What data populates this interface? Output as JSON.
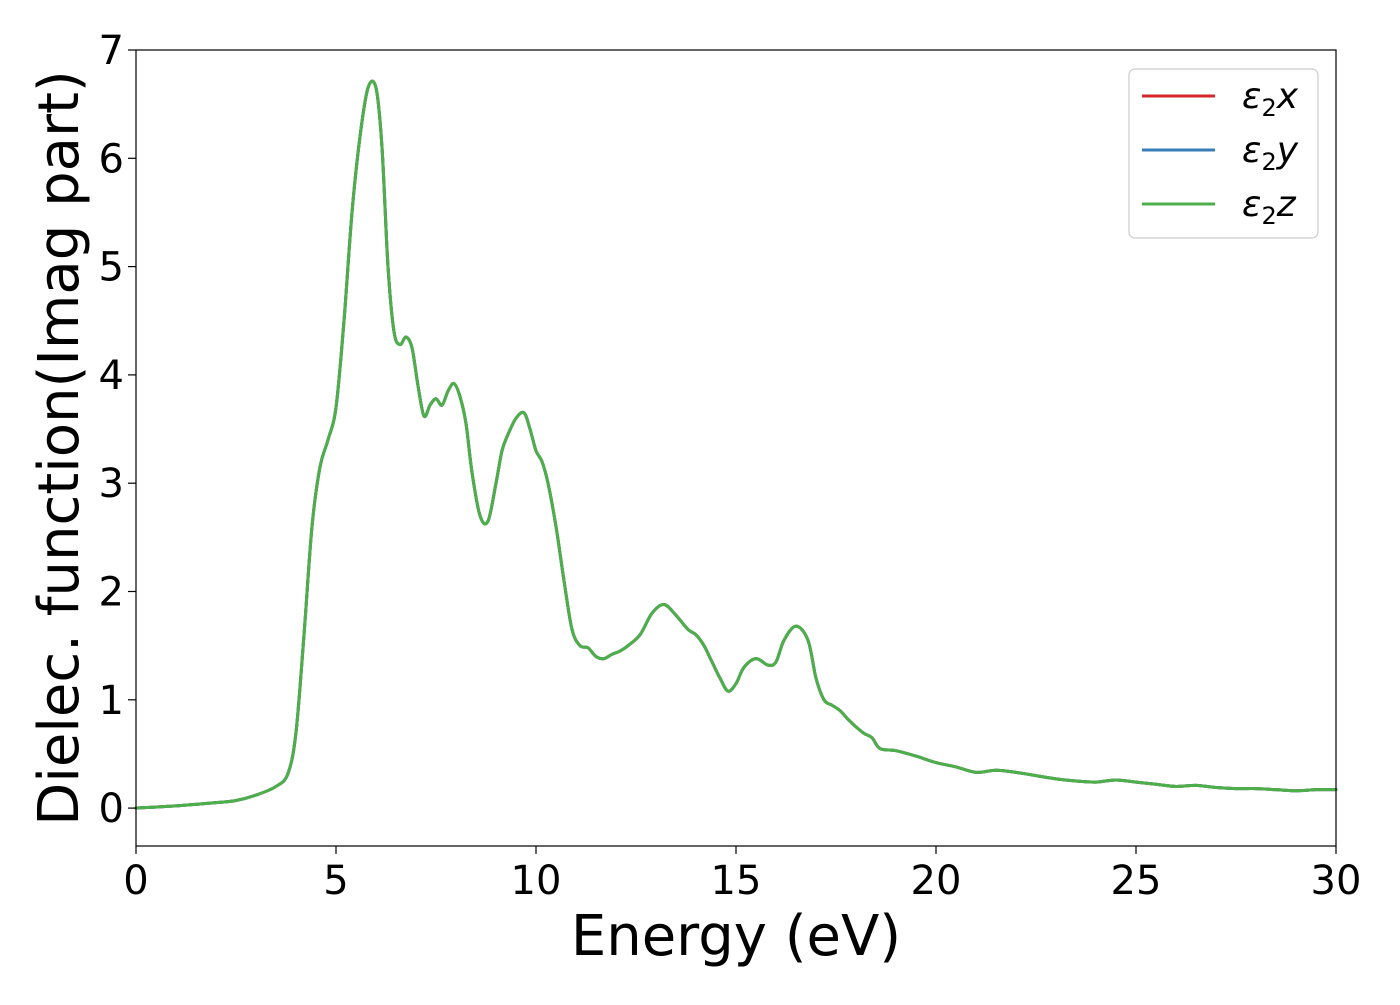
{
  "chart_data": {
    "type": "line",
    "title": "",
    "xlabel": "Energy (eV)",
    "ylabel": "Dielec. function(Imag part)",
    "xlim": [
      0,
      30
    ],
    "ylim": [
      -0.35,
      7
    ],
    "xticks": [
      0,
      5,
      10,
      15,
      20,
      25,
      30
    ],
    "yticks": [
      0,
      1,
      2,
      3,
      4,
      5,
      6,
      7
    ],
    "grid": false,
    "legend_position": "top-right",
    "x": [
      0,
      1,
      2,
      2.5,
      3,
      3.5,
      3.8,
      4,
      4.2,
      4.4,
      4.6,
      4.8,
      5,
      5.2,
      5.4,
      5.6,
      5.8,
      6,
      6.15,
      6.3,
      6.45,
      6.6,
      6.75,
      6.9,
      7.05,
      7.2,
      7.35,
      7.5,
      7.65,
      7.8,
      7.95,
      8.1,
      8.25,
      8.4,
      8.6,
      8.8,
      9,
      9.15,
      9.3,
      9.5,
      9.7,
      9.85,
      10,
      10.15,
      10.3,
      10.5,
      10.7,
      10.9,
      11.1,
      11.3,
      11.5,
      11.7,
      11.9,
      12.1,
      12.3,
      12.6,
      12.9,
      13.2,
      13.5,
      13.8,
      14,
      14.2,
      14.4,
      14.6,
      14.8,
      15,
      15.2,
      15.5,
      15.8,
      16,
      16.2,
      16.5,
      16.8,
      17,
      17.2,
      17.4,
      17.6,
      17.8,
      18,
      18.2,
      18.4,
      18.6,
      19,
      19.5,
      20,
      20.5,
      21,
      21.5,
      22,
      22.5,
      23,
      23.5,
      24,
      24.5,
      25,
      25.5,
      26,
      26.5,
      27,
      27.5,
      28,
      28.5,
      29,
      29.5,
      30
    ],
    "series": [
      {
        "name": "ε₂x",
        "color": "#d62728",
        "values": [
          0.0,
          0.02,
          0.05,
          0.07,
          0.12,
          0.2,
          0.32,
          0.7,
          1.6,
          2.6,
          3.15,
          3.4,
          3.7,
          4.5,
          5.5,
          6.2,
          6.65,
          6.65,
          6.1,
          5.0,
          4.4,
          4.28,
          4.35,
          4.25,
          3.9,
          3.62,
          3.72,
          3.78,
          3.72,
          3.85,
          3.92,
          3.8,
          3.55,
          3.1,
          2.7,
          2.65,
          3.0,
          3.3,
          3.45,
          3.6,
          3.65,
          3.5,
          3.3,
          3.2,
          3.0,
          2.6,
          2.1,
          1.65,
          1.5,
          1.48,
          1.4,
          1.38,
          1.42,
          1.45,
          1.5,
          1.6,
          1.8,
          1.88,
          1.78,
          1.65,
          1.6,
          1.5,
          1.35,
          1.2,
          1.08,
          1.15,
          1.3,
          1.38,
          1.32,
          1.35,
          1.55,
          1.68,
          1.55,
          1.2,
          1.0,
          0.95,
          0.9,
          0.82,
          0.75,
          0.69,
          0.65,
          0.55,
          0.53,
          0.48,
          0.42,
          0.38,
          0.33,
          0.35,
          0.33,
          0.3,
          0.27,
          0.25,
          0.24,
          0.26,
          0.24,
          0.22,
          0.2,
          0.21,
          0.19,
          0.18,
          0.18,
          0.17,
          0.16,
          0.17,
          0.17
        ]
      },
      {
        "name": "ε₂y",
        "color": "#377eb8",
        "values": [
          0.0,
          0.02,
          0.05,
          0.07,
          0.12,
          0.2,
          0.32,
          0.7,
          1.6,
          2.6,
          3.15,
          3.4,
          3.7,
          4.5,
          5.5,
          6.2,
          6.65,
          6.65,
          6.1,
          5.0,
          4.4,
          4.28,
          4.35,
          4.25,
          3.9,
          3.62,
          3.72,
          3.78,
          3.72,
          3.85,
          3.92,
          3.8,
          3.55,
          3.1,
          2.7,
          2.65,
          3.0,
          3.3,
          3.45,
          3.6,
          3.65,
          3.5,
          3.3,
          3.2,
          3.0,
          2.6,
          2.1,
          1.65,
          1.5,
          1.48,
          1.4,
          1.38,
          1.42,
          1.45,
          1.5,
          1.6,
          1.8,
          1.88,
          1.78,
          1.65,
          1.6,
          1.5,
          1.35,
          1.2,
          1.08,
          1.15,
          1.3,
          1.38,
          1.32,
          1.35,
          1.55,
          1.68,
          1.55,
          1.2,
          1.0,
          0.95,
          0.9,
          0.82,
          0.75,
          0.69,
          0.65,
          0.55,
          0.53,
          0.48,
          0.42,
          0.38,
          0.33,
          0.35,
          0.33,
          0.3,
          0.27,
          0.25,
          0.24,
          0.26,
          0.24,
          0.22,
          0.2,
          0.21,
          0.19,
          0.18,
          0.18,
          0.17,
          0.16,
          0.17,
          0.17
        ]
      },
      {
        "name": "ε₂z",
        "color": "#4daf4a",
        "values": [
          0.0,
          0.02,
          0.05,
          0.07,
          0.12,
          0.2,
          0.32,
          0.7,
          1.6,
          2.6,
          3.15,
          3.4,
          3.7,
          4.5,
          5.5,
          6.2,
          6.65,
          6.65,
          6.1,
          5.0,
          4.4,
          4.28,
          4.35,
          4.25,
          3.9,
          3.62,
          3.72,
          3.78,
          3.72,
          3.85,
          3.92,
          3.8,
          3.55,
          3.1,
          2.7,
          2.65,
          3.0,
          3.3,
          3.45,
          3.6,
          3.65,
          3.5,
          3.3,
          3.2,
          3.0,
          2.6,
          2.1,
          1.65,
          1.5,
          1.48,
          1.4,
          1.38,
          1.42,
          1.45,
          1.5,
          1.6,
          1.8,
          1.88,
          1.78,
          1.65,
          1.6,
          1.5,
          1.35,
          1.2,
          1.08,
          1.15,
          1.3,
          1.38,
          1.32,
          1.35,
          1.55,
          1.68,
          1.55,
          1.2,
          1.0,
          0.95,
          0.9,
          0.82,
          0.75,
          0.69,
          0.65,
          0.55,
          0.53,
          0.48,
          0.42,
          0.38,
          0.33,
          0.35,
          0.33,
          0.3,
          0.27,
          0.25,
          0.24,
          0.26,
          0.24,
          0.22,
          0.2,
          0.21,
          0.19,
          0.18,
          0.18,
          0.17,
          0.16,
          0.17,
          0.17
        ]
      }
    ],
    "legend": [
      {
        "symbol": "ε",
        "sub": "2",
        "var": "x"
      },
      {
        "symbol": "ε",
        "sub": "2",
        "var": "y"
      },
      {
        "symbol": "ε",
        "sub": "2",
        "var": "z"
      }
    ]
  }
}
